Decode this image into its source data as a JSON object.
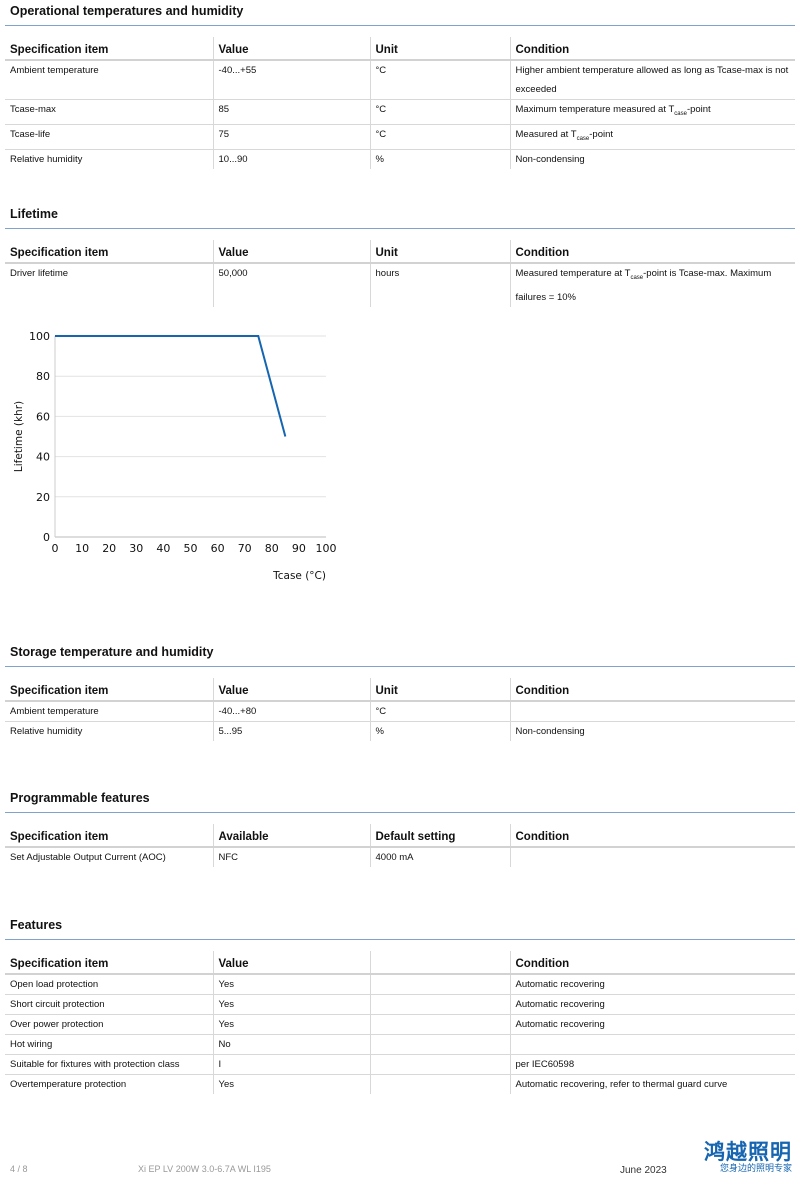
{
  "sections": [
    {
      "title": "Operational temperatures and humidity",
      "headers": [
        "Specification item",
        "Value",
        "Unit",
        "Condition"
      ],
      "rows": [
        [
          "Ambient temperature",
          "-40...+55",
          "°C",
          "Higher ambient temperature allowed as long as Tcase-max is not exceeded"
        ],
        [
          "Tcase-max",
          "85",
          "°C",
          "Maximum temperature measured at Tcase-point"
        ],
        [
          "Tcase-life",
          "75",
          "°C",
          "Measured at Tcase-point"
        ],
        [
          "Relative humidity",
          "10...90",
          "%",
          "Non-condensing"
        ]
      ]
    },
    {
      "title": "Lifetime",
      "headers": [
        "Specification item",
        "Value",
        "Unit",
        "Condition"
      ],
      "rows": [
        [
          "Driver lifetime",
          "50,000",
          "hours",
          "Measured temperature at Tcase-point is Tcase-max. Maximum failures = 10%"
        ]
      ]
    },
    {
      "title": "Storage temperature and humidity",
      "headers": [
        "Specification item",
        "Value",
        "Unit",
        "Condition"
      ],
      "rows": [
        [
          "Ambient temperature",
          "-40...+80",
          "°C",
          ""
        ],
        [
          "Relative humidity",
          "5...95",
          "%",
          "Non-condensing"
        ]
      ]
    },
    {
      "title": "Programmable features",
      "headers": [
        "Specification item",
        "Available",
        "Default setting",
        "Condition"
      ],
      "rows": [
        [
          "Set Adjustable Output Current (AOC)",
          "NFC",
          "4000 mA",
          ""
        ]
      ]
    },
    {
      "title": "Features",
      "headers": [
        "Specification item",
        "Value",
        "",
        "Condition"
      ],
      "rows": [
        [
          "Open load protection",
          "Yes",
          "",
          "Automatic recovering"
        ],
        [
          "Short circuit protection",
          "Yes",
          "",
          "Automatic recovering"
        ],
        [
          "Over power protection",
          "Yes",
          "",
          "Automatic recovering"
        ],
        [
          "Hot wiring",
          "No",
          "",
          ""
        ],
        [
          "Suitable for fixtures with protection class",
          "I",
          "",
          "per IEC60598"
        ],
        [
          "Overtemperature protection",
          "Yes",
          "",
          "Automatic recovering, refer to thermal guard curve"
        ]
      ]
    }
  ],
  "chart_data": {
    "type": "line",
    "xlabel": "Tcase (°C)",
    "ylabel": "Lifetime (khr)",
    "xlim": [
      0,
      100
    ],
    "ylim": [
      0,
      100
    ],
    "xticks": [
      "0",
      "10",
      "20",
      "30",
      "40",
      "50",
      "60",
      "70",
      "80",
      "90",
      "100"
    ],
    "yticks": [
      "0",
      "20",
      "40",
      "60",
      "80",
      "100"
    ],
    "grid": true,
    "color": "#1565b0",
    "x": [
      0,
      75,
      85
    ],
    "y": [
      100,
      100,
      50
    ]
  },
  "footer": {
    "page": "4 / 8",
    "product": "Xi EP LV 200W 3.0-6.7A WL I195",
    "date": "June 2023",
    "logo_text": "鸿越照明",
    "logo_subtext": "您身边的照明专家"
  }
}
